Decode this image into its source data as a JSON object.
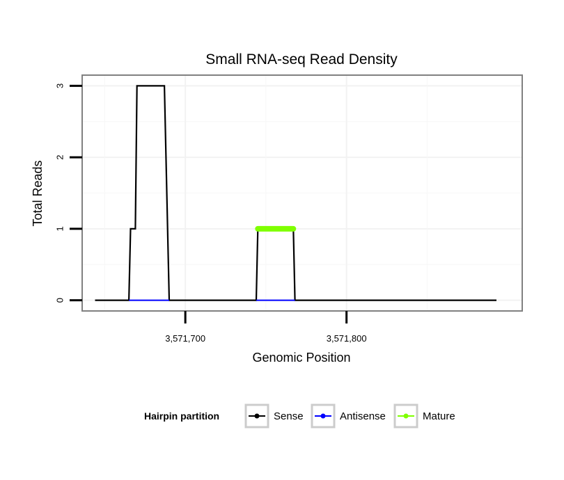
{
  "chart_data": {
    "type": "line",
    "title": "Small RNA-seq Read Density",
    "xlabel": "Genomic Position",
    "ylabel": "Total Reads",
    "xlim": [
      3571636,
      3571909
    ],
    "ylim": [
      -0.15,
      3.15
    ],
    "x_ticks": [
      3571700,
      3571800
    ],
    "x_tick_labels": [
      "3,571,700",
      "3,571,800"
    ],
    "y_ticks": [
      0,
      1,
      2,
      3
    ],
    "y_tick_labels": [
      "0",
      "1",
      "2",
      "3"
    ],
    "grid": true,
    "legend": {
      "title": "Hairpin partition",
      "position": "bottom",
      "entries": [
        "Sense",
        "Antisense",
        "Mature"
      ]
    },
    "series": [
      {
        "name": "Sense",
        "color": "#000000",
        "x": [
          3571644,
          3571665,
          3571666,
          3571669,
          3571670,
          3571687,
          3571688,
          3571690,
          3571744,
          3571745,
          3571767,
          3571768,
          3571893
        ],
        "y": [
          0,
          0,
          1,
          1,
          3,
          3,
          2,
          0,
          0,
          1,
          1,
          0,
          0
        ]
      },
      {
        "name": "Antisense",
        "color": "#0000ff",
        "x": [
          3571665,
          3571690,
          3571744,
          3571768
        ],
        "y": [
          0,
          0,
          0,
          0
        ],
        "segments": [
          [
            0,
            1
          ],
          [
            2,
            3
          ]
        ]
      },
      {
        "name": "Mature",
        "color": "#7fff00",
        "x": [
          3571745,
          3571767
        ],
        "y": [
          1,
          1
        ]
      }
    ]
  }
}
